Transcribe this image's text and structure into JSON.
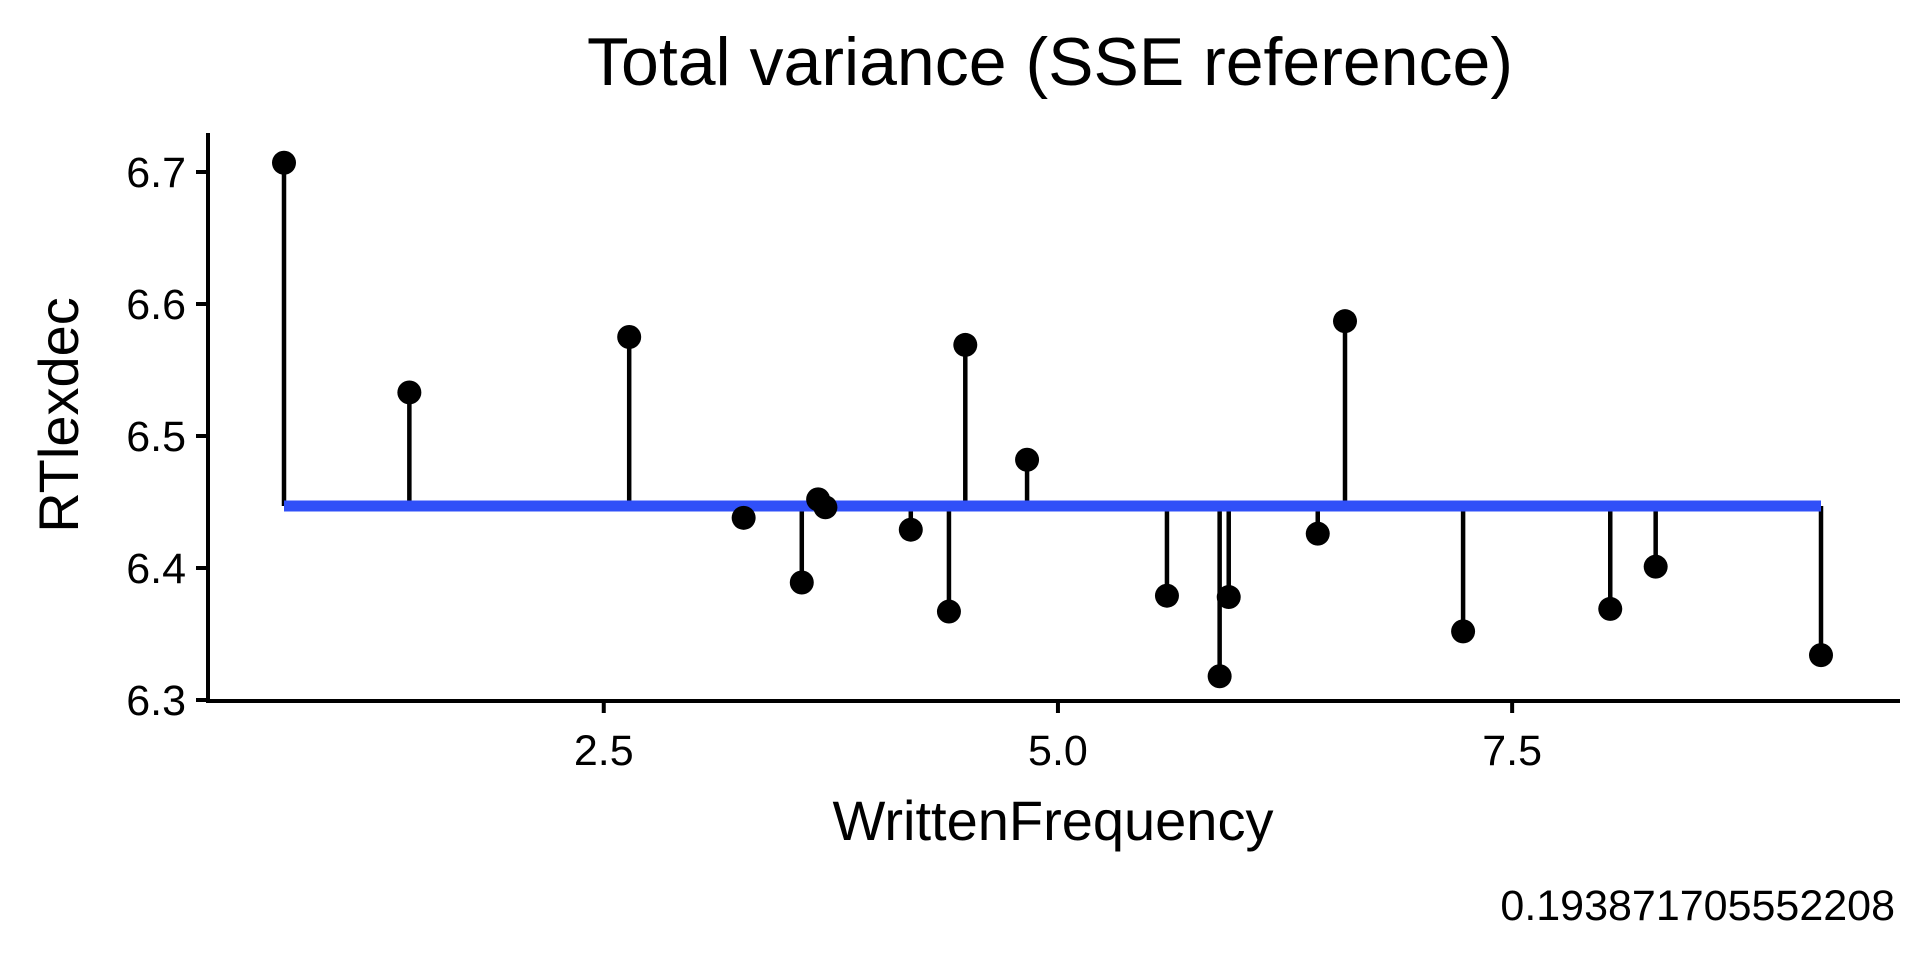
{
  "chart_data": {
    "type": "scatter",
    "title": "Total variance (SSE reference)",
    "xlabel": "WrittenFrequency",
    "ylabel": "RTlexdec",
    "caption": "0.193871705552208",
    "xlim": [
      0.3,
      9.55
    ],
    "ylim": [
      6.3,
      6.73
    ],
    "x_ticks": [
      {
        "value": 2.5,
        "label": "2.5"
      },
      {
        "value": 5.0,
        "label": "5.0"
      },
      {
        "value": 7.5,
        "label": "7.5"
      }
    ],
    "y_ticks": [
      {
        "value": 6.3,
        "label": "6.3"
      },
      {
        "value": 6.4,
        "label": "6.4"
      },
      {
        "value": 6.5,
        "label": "6.5"
      },
      {
        "value": 6.6,
        "label": "6.6"
      },
      {
        "value": 6.7,
        "label": "6.7"
      }
    ],
    "reference_line": {
      "y": 6.447,
      "x_start": 0.74,
      "x_end": 9.2,
      "color": "#3050f8"
    },
    "point_color": "#000000",
    "grid": false,
    "points": [
      {
        "x": 0.74,
        "y": 6.707
      },
      {
        "x": 1.43,
        "y": 6.533
      },
      {
        "x": 2.64,
        "y": 6.575
      },
      {
        "x": 3.27,
        "y": 6.438
      },
      {
        "x": 3.59,
        "y": 6.389
      },
      {
        "x": 3.68,
        "y": 6.452
      },
      {
        "x": 3.72,
        "y": 6.446
      },
      {
        "x": 4.19,
        "y": 6.429
      },
      {
        "x": 4.4,
        "y": 6.367
      },
      {
        "x": 4.49,
        "y": 6.569
      },
      {
        "x": 4.83,
        "y": 6.482
      },
      {
        "x": 5.6,
        "y": 6.379
      },
      {
        "x": 5.89,
        "y": 6.318
      },
      {
        "x": 5.94,
        "y": 6.378
      },
      {
        "x": 6.43,
        "y": 6.426
      },
      {
        "x": 6.58,
        "y": 6.587
      },
      {
        "x": 7.23,
        "y": 6.352
      },
      {
        "x": 8.04,
        "y": 6.369
      },
      {
        "x": 8.29,
        "y": 6.401
      },
      {
        "x": 9.2,
        "y": 6.334
      }
    ]
  }
}
